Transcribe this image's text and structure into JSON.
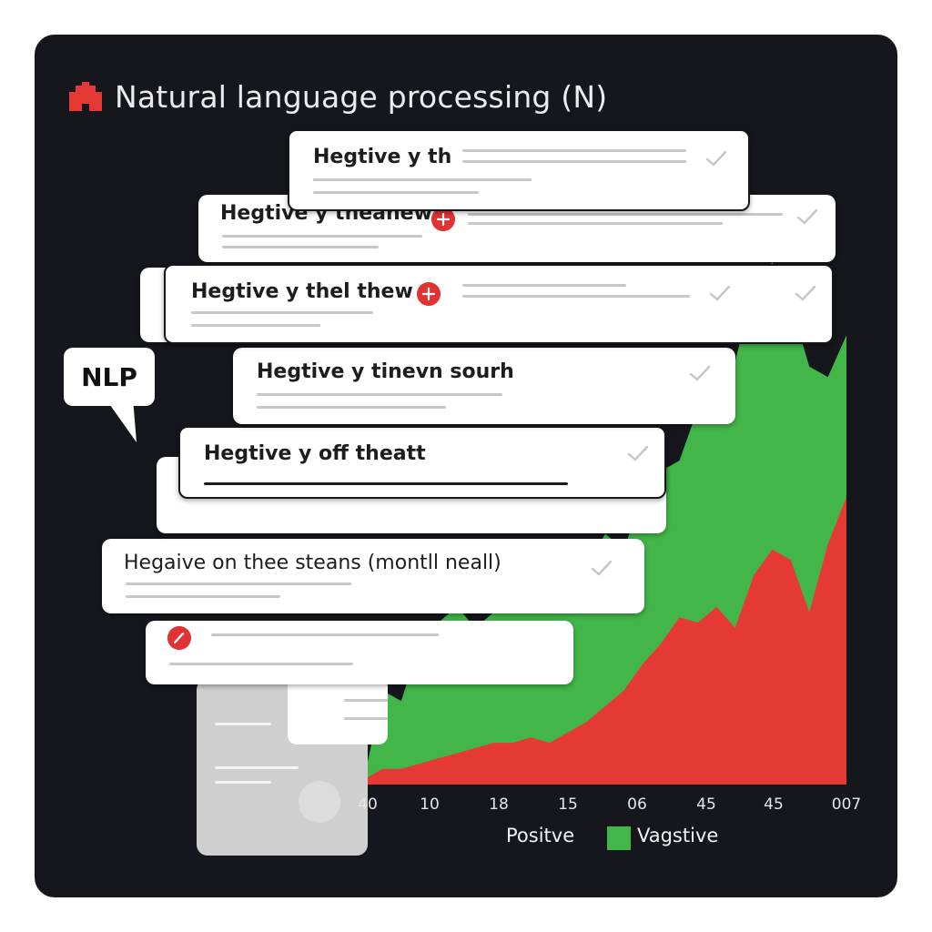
{
  "title": "Natural language processing (N)",
  "bubble_label": "NLP",
  "icons": {
    "title": "building-icon",
    "check": "check-icon",
    "plus": "plus-badge-icon",
    "edit": "edit-badge-icon"
  },
  "colors": {
    "positive": "#e53935",
    "negative": "#43b649",
    "panel": "#15171c"
  },
  "cards": [
    {
      "text": "Hegtive y th"
    },
    {
      "text": "Hegtive y theanew"
    },
    {
      "text": "Hegtive y thel thew"
    },
    {
      "text": "Hegtive y tinevn sourh"
    },
    {
      "text": "Hegtive y off theatt"
    },
    {
      "text": "Hegaive on thee steans (montll neall)"
    }
  ],
  "chart_data": {
    "type": "area",
    "x_tick_labels": [
      "40",
      "10",
      "18",
      "15",
      "06",
      "45",
      "45",
      "007"
    ],
    "legend": [
      {
        "label": "Positve",
        "color": "#e53935"
      },
      {
        "label": "Vagstive",
        "color": "#43b649"
      }
    ],
    "series": [
      {
        "name": "Vagstive",
        "color": "#43b649",
        "values": [
          1,
          18,
          16,
          27,
          31,
          34,
          30,
          33,
          36,
          39,
          35,
          37,
          42,
          48,
          45,
          55,
          60,
          62,
          72,
          78,
          81,
          95,
          100,
          92,
          80,
          78,
          86
        ]
      },
      {
        "name": "Positve",
        "color": "#e53935",
        "values": [
          1,
          3,
          3,
          4,
          5,
          6,
          7,
          8,
          8,
          9,
          8,
          10,
          12,
          15,
          18,
          23,
          27,
          32,
          31,
          34,
          30,
          40,
          45,
          43,
          33,
          46,
          55
        ]
      }
    ]
  }
}
